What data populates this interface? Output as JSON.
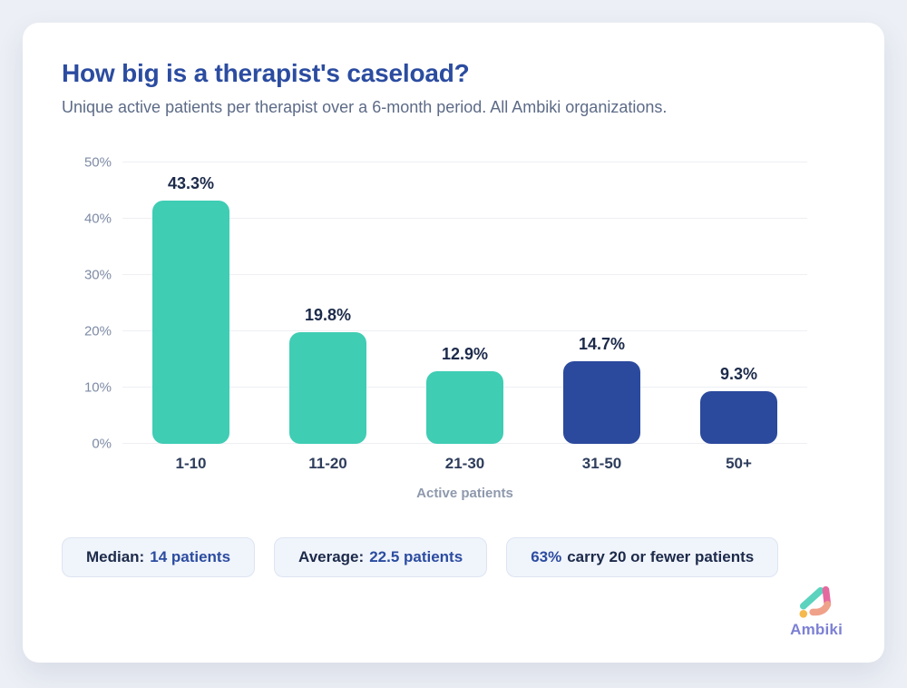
{
  "header": {
    "title": "How big is a therapist's caseload?",
    "subtitle": "Unique active patients per therapist over a 6-month period. All Ambiki organizations."
  },
  "chart_data": {
    "type": "bar",
    "categories": [
      "1-10",
      "11-20",
      "21-30",
      "31-50",
      "50+"
    ],
    "values": [
      43.3,
      19.8,
      12.9,
      14.7,
      9.3
    ],
    "value_labels": [
      "43.3%",
      "19.8%",
      "12.9%",
      "14.7%",
      "9.3%"
    ],
    "bar_colors": [
      "#3FCDB4",
      "#3FCDB4",
      "#3FCDB4",
      "#2B4A9D",
      "#2B4A9D"
    ],
    "title": "How big is a therapist's caseload?",
    "xlabel": "Active patients",
    "ylabel": "",
    "ylim": [
      0,
      50
    ],
    "yticks": [
      0,
      10,
      20,
      30,
      40,
      50
    ],
    "ytick_suffix": "%",
    "grid": true,
    "legend": false
  },
  "stats": [
    {
      "parts": [
        {
          "text": "Median:"
        },
        {
          "text": "14 patients"
        }
      ]
    },
    {
      "parts": [
        {
          "text": "Average:"
        },
        {
          "text": "22.5 patients"
        }
      ]
    },
    {
      "parts": [
        {
          "text": "63%"
        },
        {
          "text": "carry 20 or fewer patients"
        }
      ]
    }
  ],
  "logo": {
    "text": "Ambiki",
    "colors": {
      "teal": "#5BD3BE",
      "pink": "#E5699F",
      "peach": "#F0A18A",
      "amber": "#F5B94E",
      "text": "#7C80D4"
    }
  }
}
